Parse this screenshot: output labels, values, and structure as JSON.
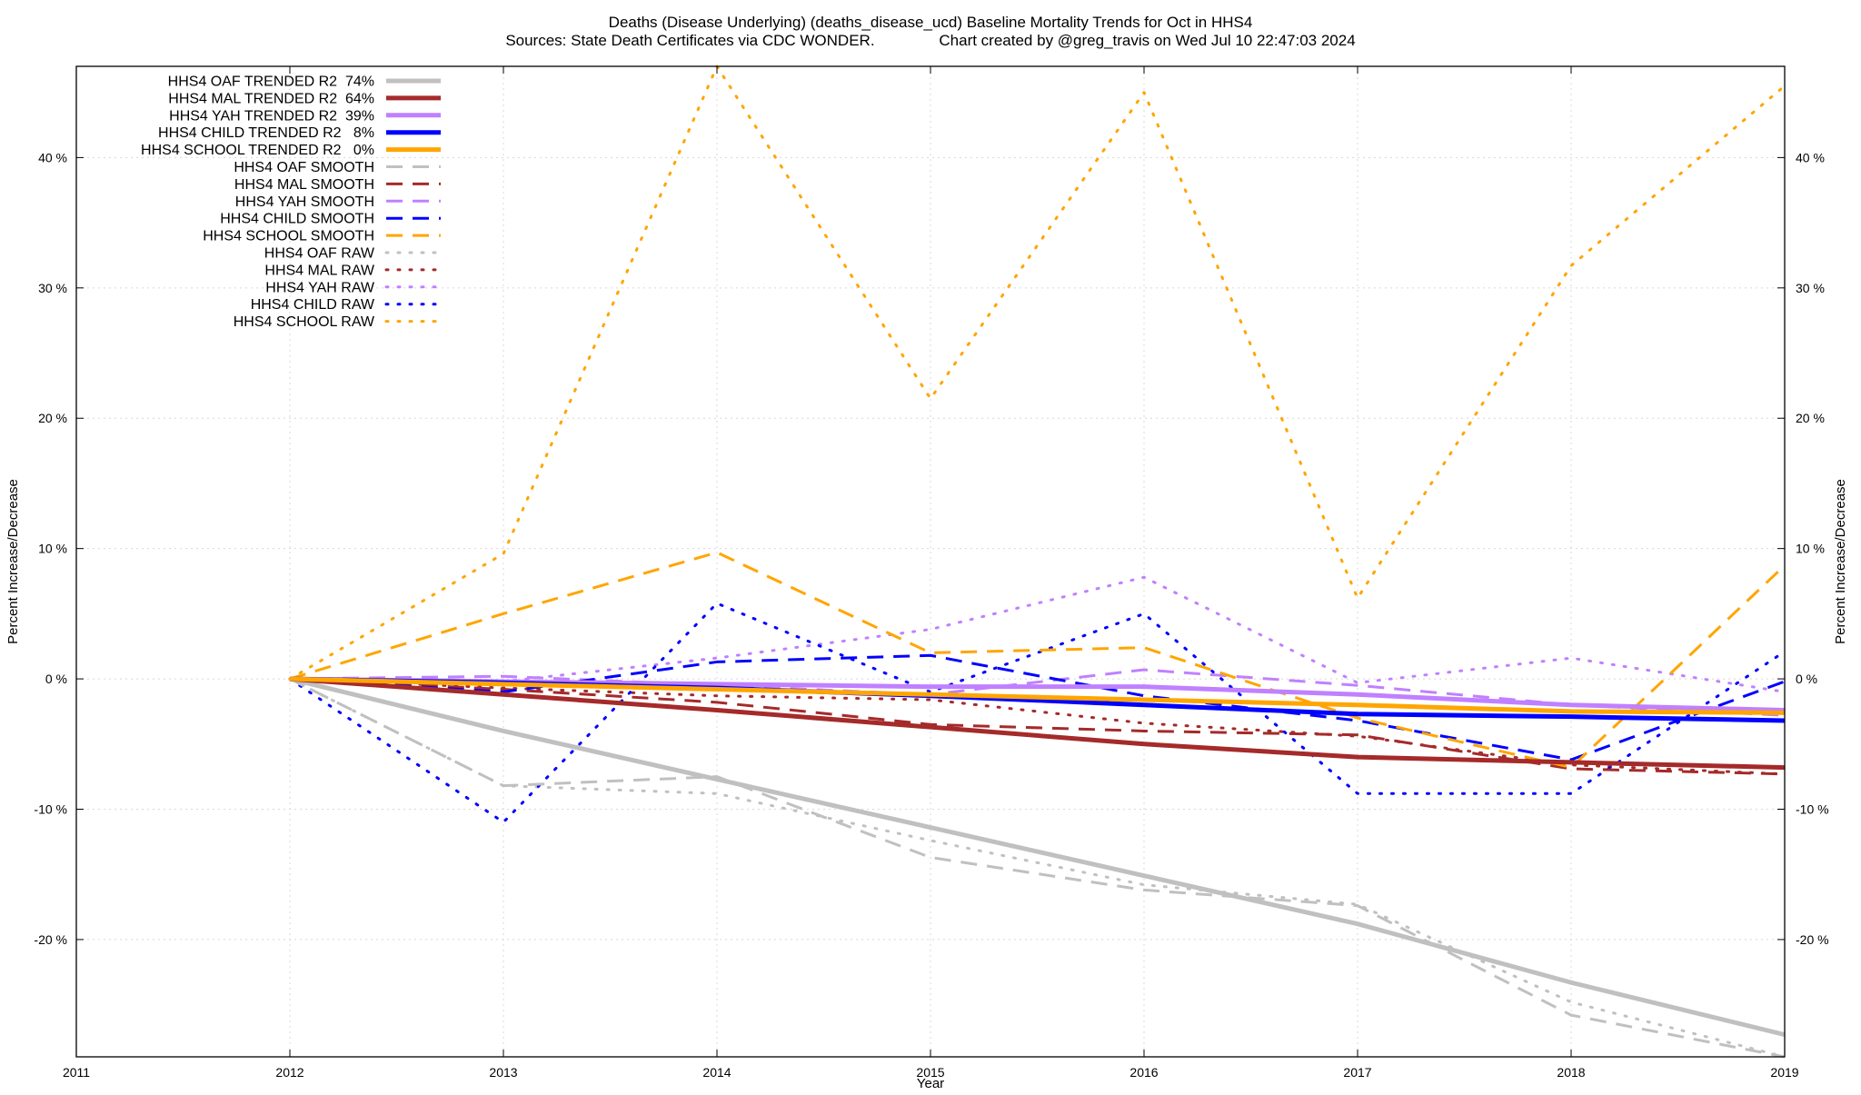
{
  "chart_data": {
    "type": "line",
    "title_line1": "Deaths (Disease Underlying) (deaths_disease_ucd)  Baseline Mortality Trends for Oct in HHS4",
    "title_line2": "Sources: State Death Certificates via CDC WONDER.               Chart created by @greg_travis on Wed Jul 10 22:47:03 2024",
    "xlabel": "Year",
    "ylabel": "Percent Increase/Decrease",
    "y2label": "Percent Increase/Decrease",
    "xlim": [
      2011,
      2019
    ],
    "ylim": [
      -29,
      47
    ],
    "x_ticks": [
      2011,
      2012,
      2013,
      2014,
      2015,
      2016,
      2017,
      2018,
      2019
    ],
    "y_ticks": [
      -20,
      -10,
      0,
      10,
      20,
      30,
      40
    ],
    "y_tick_labels": [
      "-20 %",
      "-10 %",
      "0 %",
      "10 %",
      "20 %",
      "30 %",
      "40 %"
    ],
    "grid": true,
    "legend_position": "top-left",
    "x": [
      2012,
      2013,
      2014,
      2015,
      2016,
      2017,
      2018,
      2019
    ],
    "series": [
      {
        "name": "HHS4 OAF TRENDED R2  74%",
        "style": "solid",
        "color": "#c0c0c0",
        "values": [
          0,
          -4.0,
          -7.7,
          -11.4,
          -15.1,
          -18.8,
          -23.3,
          -27.3
        ]
      },
      {
        "name": "HHS4 MAL TRENDED R2  64%",
        "style": "solid",
        "color": "#a52a2a",
        "values": [
          0,
          -1.2,
          -2.4,
          -3.7,
          -5.0,
          -6.0,
          -6.4,
          -6.8
        ]
      },
      {
        "name": "HHS4 YAH TRENDED R2  39%",
        "style": "solid",
        "color": "#c080ff",
        "values": [
          0,
          -0.2,
          -0.4,
          -0.6,
          -0.6,
          -1.2,
          -2.0,
          -2.4
        ]
      },
      {
        "name": "HHS4 CHILD TRENDED R2   8%",
        "style": "solid",
        "color": "#0000ff",
        "values": [
          0,
          -0.3,
          -0.7,
          -1.3,
          -2.0,
          -2.7,
          -2.9,
          -3.2
        ]
      },
      {
        "name": "HHS4 SCHOOL TRENDED R2   0%",
        "style": "solid",
        "color": "#ffa500",
        "values": [
          0,
          -0.4,
          -0.8,
          -1.2,
          -1.6,
          -2.0,
          -2.5,
          -2.6
        ]
      },
      {
        "name": "HHS4 OAF SMOOTH",
        "style": "dashed",
        "color": "#c0c0c0",
        "values": [
          0,
          -8.2,
          -7.5,
          -13.7,
          -16.2,
          -17.4,
          -25.8,
          -29.0
        ]
      },
      {
        "name": "HHS4 MAL SMOOTH",
        "style": "dashed",
        "color": "#a52a2a",
        "values": [
          0,
          -0.8,
          -1.8,
          -3.5,
          -4.0,
          -4.3,
          -6.9,
          -7.3
        ]
      },
      {
        "name": "HHS4 YAH SMOOTH",
        "style": "dashed",
        "color": "#c080ff",
        "values": [
          0,
          0.2,
          -0.5,
          -1.2,
          0.7,
          -0.5,
          -2.0,
          -2.8
        ]
      },
      {
        "name": "HHS4 CHILD SMOOTH",
        "style": "dashed",
        "color": "#0000ff",
        "values": [
          0,
          -1.0,
          1.3,
          1.8,
          -1.3,
          -3.2,
          -6.2,
          -0.2
        ]
      },
      {
        "name": "HHS4 SCHOOL SMOOTH",
        "style": "dashed",
        "color": "#ffa500",
        "values": [
          0,
          5.0,
          9.7,
          2.0,
          2.4,
          -3.0,
          -6.8,
          8.7
        ]
      },
      {
        "name": "HHS4 OAF RAW",
        "style": "dotted",
        "color": "#c0c0c0",
        "values": [
          0,
          -8.2,
          -8.8,
          -12.4,
          -15.8,
          -17.3,
          -24.8,
          -29.0
        ]
      },
      {
        "name": "HHS4 MAL RAW",
        "style": "dotted",
        "color": "#a52a2a",
        "values": [
          0,
          -0.7,
          -1.3,
          -1.6,
          -3.4,
          -4.4,
          -6.6,
          -7.3
        ]
      },
      {
        "name": "HHS4 YAH RAW",
        "style": "dotted",
        "color": "#c080ff",
        "values": [
          0,
          -0.2,
          1.6,
          3.8,
          7.8,
          -0.3,
          1.6,
          -1.0
        ]
      },
      {
        "name": "HHS4 CHILD RAW",
        "style": "dotted",
        "color": "#0000ff",
        "values": [
          0,
          -11.0,
          5.8,
          -1.0,
          5.0,
          -8.8,
          -8.8,
          2.1
        ]
      },
      {
        "name": "HHS4 SCHOOL RAW",
        "style": "dotted",
        "color": "#ffa500",
        "values": [
          0,
          9.6,
          47.0,
          21.5,
          45.0,
          6.2,
          31.7,
          45.5
        ]
      }
    ]
  }
}
